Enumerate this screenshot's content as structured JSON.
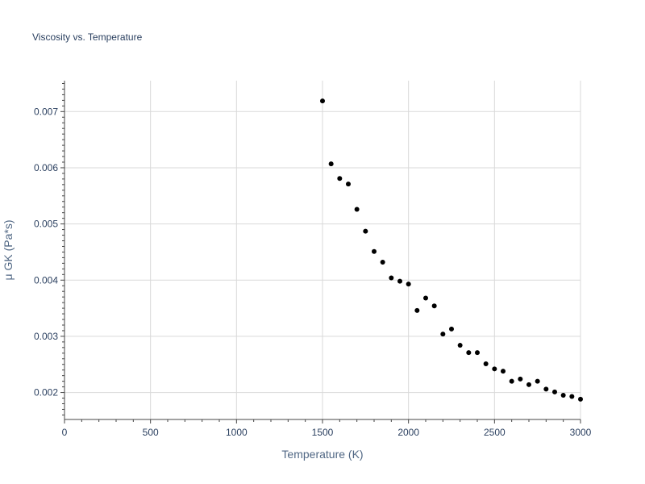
{
  "chart_data": {
    "type": "scatter",
    "title": "Viscosity vs. Temperature",
    "xlabel": "Temperature (K)",
    "ylabel": "μ GK (Pa*s)",
    "xlim": [
      0,
      3000
    ],
    "ylim": [
      0.00152,
      0.00755
    ],
    "x_ticks": [
      0,
      500,
      1000,
      1500,
      2000,
      2500,
      3000
    ],
    "x_tick_labels": [
      "0",
      "500",
      "1000",
      "1500",
      "2000",
      "2500",
      "3000"
    ],
    "y_ticks": [
      0.002,
      0.003,
      0.004,
      0.005,
      0.006,
      0.007
    ],
    "y_tick_labels": [
      "0.002",
      "0.003",
      "0.004",
      "0.005",
      "0.006",
      "0.007"
    ],
    "grid": true,
    "marker_color": "#000000",
    "series": [
      {
        "x": [
          1500,
          1550,
          1600,
          1650,
          1700,
          1750,
          1800,
          1850,
          1900,
          1950,
          2000,
          2050,
          2100,
          2150,
          2200,
          2250,
          2300,
          2350,
          2400,
          2450,
          2500,
          2550,
          2600,
          2650,
          2700,
          2750,
          2800,
          2850,
          2900,
          2950,
          3000
        ],
        "y": [
          0.00719,
          0.00607,
          0.00581,
          0.00571,
          0.00526,
          0.00487,
          0.00451,
          0.00432,
          0.00404,
          0.00398,
          0.00393,
          0.00346,
          0.00368,
          0.00354,
          0.00304,
          0.00313,
          0.00284,
          0.00271,
          0.00271,
          0.00251,
          0.00242,
          0.00238,
          0.0022,
          0.00224,
          0.00214,
          0.0022,
          0.00206,
          0.00201,
          0.00195,
          0.00193,
          0.00188
        ]
      }
    ]
  }
}
